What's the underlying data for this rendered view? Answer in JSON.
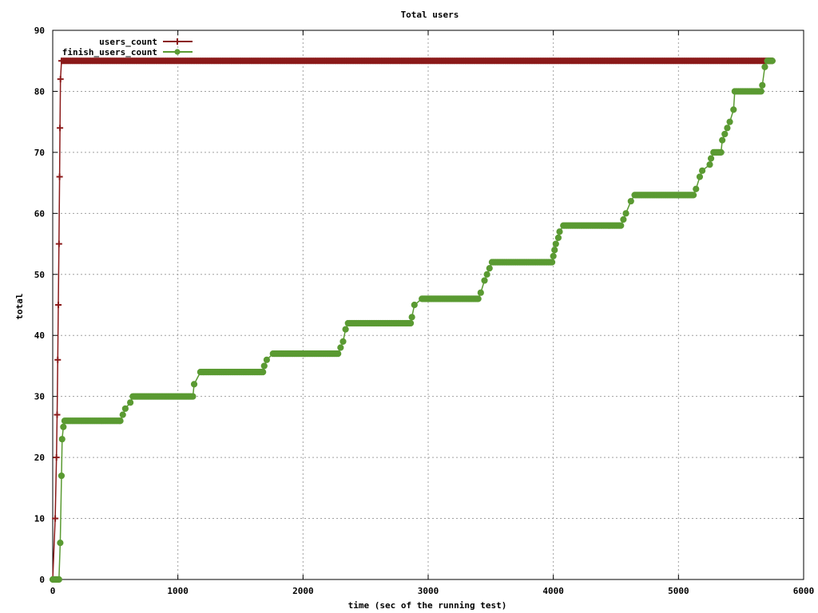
{
  "chart_data": {
    "type": "line",
    "title": "Total users",
    "xlabel": "time (sec of the running test)",
    "ylabel": "total",
    "xlim": [
      0,
      6000
    ],
    "ylim": [
      0,
      90
    ],
    "x_ticks": [
      0,
      1000,
      2000,
      3000,
      4000,
      5000,
      6000
    ],
    "y_ticks": [
      0,
      10,
      20,
      30,
      40,
      50,
      60,
      70,
      80,
      90
    ],
    "grid": true,
    "legend_position": "top-left",
    "series": [
      {
        "name": "users_count",
        "color": "#8b1a1a",
        "marker": "plus",
        "points": [
          [
            0,
            0
          ],
          [
            20,
            10
          ],
          [
            30,
            20
          ],
          [
            35,
            27
          ],
          [
            40,
            36
          ],
          [
            45,
            45
          ],
          [
            50,
            55
          ],
          [
            55,
            66
          ],
          [
            58,
            74
          ],
          [
            62,
            82
          ],
          [
            70,
            85
          ],
          [
            200,
            85
          ],
          [
            1000,
            85
          ],
          [
            2000,
            85
          ],
          [
            3000,
            85
          ],
          [
            4000,
            85
          ],
          [
            5000,
            85
          ],
          [
            5750,
            85
          ]
        ]
      },
      {
        "name": "finish_users_count",
        "color": "#5a9a32",
        "marker": "circle",
        "points": [
          [
            0,
            0
          ],
          [
            50,
            0
          ],
          [
            60,
            6
          ],
          [
            70,
            17
          ],
          [
            75,
            23
          ],
          [
            85,
            25
          ],
          [
            95,
            26
          ],
          [
            540,
            26
          ],
          [
            560,
            27
          ],
          [
            580,
            28
          ],
          [
            620,
            29
          ],
          [
            640,
            30
          ],
          [
            1120,
            30
          ],
          [
            1130,
            32
          ],
          [
            1180,
            34
          ],
          [
            1680,
            34
          ],
          [
            1690,
            35
          ],
          [
            1710,
            36
          ],
          [
            1760,
            37
          ],
          [
            2280,
            37
          ],
          [
            2300,
            38
          ],
          [
            2320,
            39
          ],
          [
            2340,
            41
          ],
          [
            2360,
            42
          ],
          [
            2860,
            42
          ],
          [
            2870,
            43
          ],
          [
            2890,
            45
          ],
          [
            2950,
            46
          ],
          [
            3400,
            46
          ],
          [
            3420,
            47
          ],
          [
            3450,
            49
          ],
          [
            3470,
            50
          ],
          [
            3490,
            51
          ],
          [
            3510,
            52
          ],
          [
            3990,
            52
          ],
          [
            4000,
            53
          ],
          [
            4010,
            54
          ],
          [
            4020,
            55
          ],
          [
            4040,
            56
          ],
          [
            4050,
            57
          ],
          [
            4080,
            58
          ],
          [
            4540,
            58
          ],
          [
            4560,
            59
          ],
          [
            4580,
            60
          ],
          [
            4620,
            62
          ],
          [
            4650,
            63
          ],
          [
            5120,
            63
          ],
          [
            5140,
            64
          ],
          [
            5170,
            66
          ],
          [
            5190,
            67
          ],
          [
            5250,
            68
          ],
          [
            5260,
            69
          ],
          [
            5280,
            70
          ],
          [
            5340,
            70
          ],
          [
            5350,
            72
          ],
          [
            5370,
            73
          ],
          [
            5390,
            74
          ],
          [
            5410,
            75
          ],
          [
            5440,
            77
          ],
          [
            5450,
            80
          ],
          [
            5660,
            80
          ],
          [
            5670,
            81
          ],
          [
            5690,
            84
          ],
          [
            5710,
            85
          ],
          [
            5750,
            85
          ]
        ]
      }
    ]
  }
}
